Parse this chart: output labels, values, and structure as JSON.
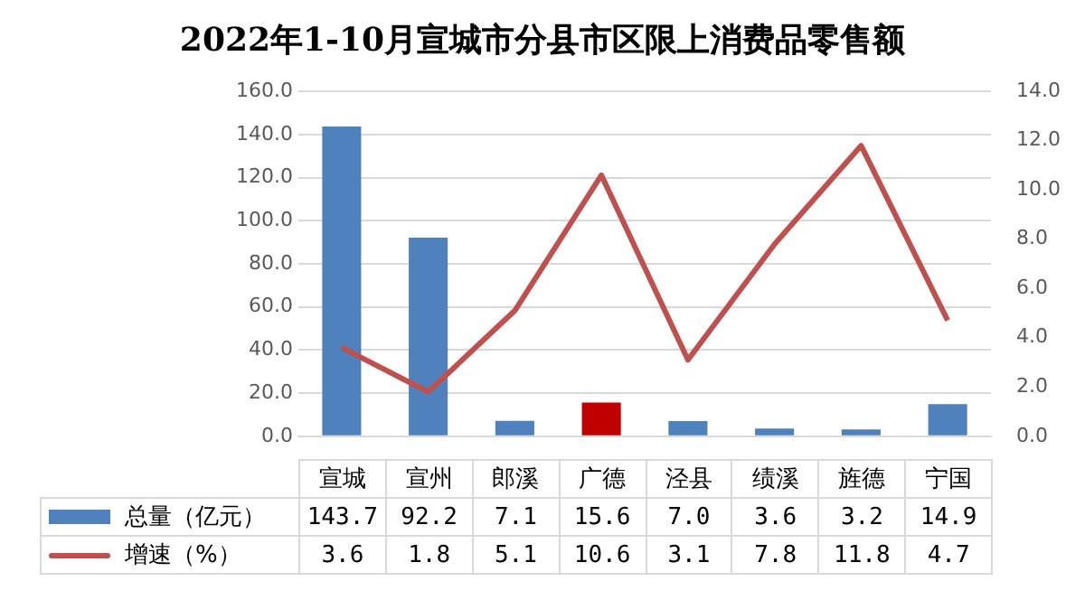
{
  "chart_data": {
    "type": "bar",
    "title": "2022年1-10月宣城市分县市区限上消费品零售额",
    "categories": [
      "宣城",
      "宣州",
      "郎溪",
      "广德",
      "泾县",
      "绩溪",
      "旌德",
      "宁国"
    ],
    "series": [
      {
        "name": "总量（亿元）",
        "colors": [
          "#4f81bd",
          "#4f81bd",
          "#4f81bd",
          "#c00000",
          "#4f81bd",
          "#4f81bd",
          "#4f81bd",
          "#4f81bd"
        ],
        "color": "#4f81bd",
        "values": [
          143.7,
          92.2,
          7.1,
          15.6,
          7.0,
          3.6,
          3.2,
          14.9
        ],
        "value_labels": [
          "143.7",
          "92.2",
          "7.1",
          "15.6",
          "7.0",
          "3.6",
          "3.2",
          "14.9"
        ]
      },
      {
        "name": "增速（%）",
        "type": "line",
        "axis": "y2",
        "color": "#c0504d",
        "values": [
          3.6,
          1.8,
          5.1,
          10.6,
          3.1,
          7.8,
          11.8,
          4.7
        ],
        "value_labels": [
          "3.6",
          "1.8",
          "5.1",
          "10.6",
          "3.1",
          "7.8",
          "11.8",
          "4.7"
        ]
      }
    ],
    "ylim": [
      0,
      160
    ],
    "yticks": [
      {
        "value": 0,
        "label": "0.0"
      },
      {
        "value": 20,
        "label": "20.0"
      },
      {
        "value": 40,
        "label": "40.0"
      },
      {
        "value": 60,
        "label": "60.0"
      },
      {
        "value": 80,
        "label": "80.0"
      },
      {
        "value": 100,
        "label": "100.0"
      },
      {
        "value": 120,
        "label": "120.0"
      },
      {
        "value": 140,
        "label": "140.0"
      },
      {
        "value": 160,
        "label": "160.0"
      }
    ],
    "y2lim": [
      0,
      14
    ],
    "y2ticks": [
      {
        "value": 0,
        "label": "0.0"
      },
      {
        "value": 2,
        "label": "2.0"
      },
      {
        "value": 4,
        "label": "4.0"
      },
      {
        "value": 6,
        "label": "6.0"
      },
      {
        "value": 8,
        "label": "8.0"
      },
      {
        "value": 10,
        "label": "10.0"
      },
      {
        "value": 12,
        "label": "12.0"
      },
      {
        "value": 14,
        "label": "14.0"
      }
    ],
    "grid": "y",
    "legend": "bottom left",
    "marker": "none",
    "line_style": "solid"
  }
}
